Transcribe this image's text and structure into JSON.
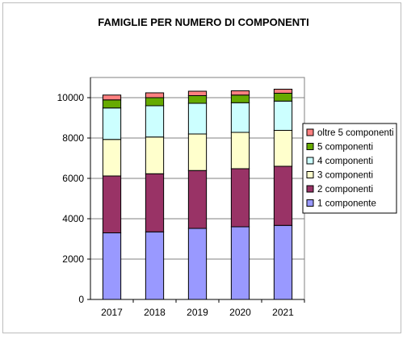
{
  "chart_data": {
    "type": "bar",
    "stacked": true,
    "title": "FAMIGLIE PER NUMERO DI COMPONENTI",
    "xlabel": "",
    "ylabel": "",
    "categories": [
      "2017",
      "2018",
      "2019",
      "2020",
      "2021"
    ],
    "ylim": [
      0,
      10000
    ],
    "yticks": [
      "0",
      "2000",
      "4000",
      "6000",
      "8000",
      "10000"
    ],
    "grid": true,
    "legend_position": "right",
    "series": [
      {
        "name": "1 componente",
        "color": "#9999ff",
        "values": [
          3300,
          3350,
          3520,
          3600,
          3670
        ]
      },
      {
        "name": "2 componenti",
        "color": "#993366",
        "values": [
          2820,
          2880,
          2870,
          2880,
          2930
        ]
      },
      {
        "name": "3 componenti",
        "color": "#ffffcc",
        "values": [
          1810,
          1820,
          1810,
          1800,
          1780
        ]
      },
      {
        "name": "4 componenti",
        "color": "#ccffff",
        "values": [
          1560,
          1550,
          1520,
          1470,
          1450
        ]
      },
      {
        "name": "5 componenti",
        "color": "#66aa00",
        "values": [
          400,
          400,
          380,
          380,
          390
        ]
      },
      {
        "name": "oltre 5 componenti",
        "color": "#ff8080",
        "values": [
          240,
          240,
          220,
          210,
          200
        ]
      }
    ]
  }
}
